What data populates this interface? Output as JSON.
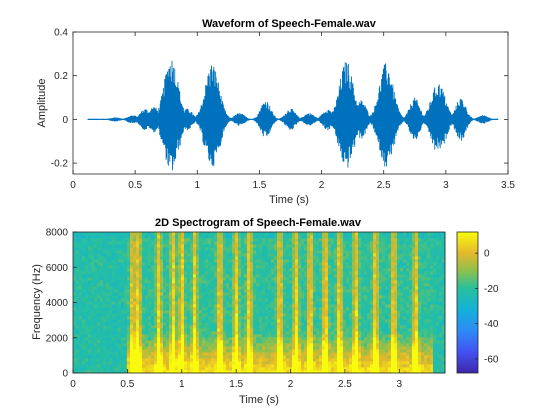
{
  "colors": {
    "waveform": "#0072BD",
    "axis": "#262626",
    "background": "#ffffff"
  },
  "chart_data": [
    {
      "type": "line",
      "title": "Waveform of Speech-Female.wav",
      "xlabel": "Time (s)",
      "ylabel": "Amplitude",
      "xlim": [
        0,
        3.5
      ],
      "ylim": [
        -0.25,
        0.4
      ],
      "xticks": [
        "0",
        "0.5",
        "1",
        "1.5",
        "2",
        "2.5",
        "3",
        "3.5"
      ],
      "yticks": [
        "-0.2",
        "0",
        "0.2",
        "0.4"
      ],
      "grid": false,
      "signal_end_s": 3.42,
      "bursts": [
        {
          "t": 0.34,
          "peak": 0.01
        },
        {
          "t": 0.48,
          "peak": 0.02
        },
        {
          "t": 0.58,
          "peak": 0.05
        },
        {
          "t": 0.65,
          "peak": 0.06
        },
        {
          "t": 0.79,
          "peak": 0.29
        },
        {
          "t": 0.92,
          "peak": 0.05
        },
        {
          "t": 1.06,
          "peak": 0.03
        },
        {
          "t": 1.12,
          "peak": 0.26
        },
        {
          "t": 1.34,
          "peak": 0.03
        },
        {
          "t": 1.55,
          "peak": 0.09
        },
        {
          "t": 1.75,
          "peak": 0.05
        },
        {
          "t": 1.9,
          "peak": 0.03
        },
        {
          "t": 2.05,
          "peak": 0.05
        },
        {
          "t": 2.2,
          "peak": 0.27
        },
        {
          "t": 2.32,
          "peak": 0.09
        },
        {
          "t": 2.52,
          "peak": 0.26
        },
        {
          "t": 2.75,
          "peak": 0.1
        },
        {
          "t": 2.94,
          "peak": 0.17
        },
        {
          "t": 3.12,
          "peak": 0.1
        },
        {
          "t": 3.3,
          "peak": 0.02
        }
      ]
    },
    {
      "type": "heatmap",
      "title": "2D Spectrogram of Speech-Female.wav",
      "xlabel": "Time (s)",
      "ylabel": "Frequency (Hz)",
      "xlim": [
        0,
        3.42
      ],
      "ylim": [
        0,
        8000
      ],
      "xticks": [
        "0",
        "0.5",
        "1",
        "1.5",
        "2",
        "2.5",
        "3"
      ],
      "yticks": [
        "0",
        "2000",
        "4000",
        "6000",
        "8000"
      ],
      "colorbar": {
        "range": [
          -68,
          12
        ],
        "ticks": [
          "0",
          "-20",
          "-40",
          "-60"
        ],
        "colormap": "parula"
      },
      "loud_columns_s": [
        0.55,
        0.6,
        0.79,
        0.92,
        1.0,
        1.12,
        1.35,
        1.5,
        1.62,
        1.9,
        2.05,
        2.18,
        2.32,
        2.45,
        2.6,
        2.78,
        2.95,
        3.15
      ]
    }
  ]
}
